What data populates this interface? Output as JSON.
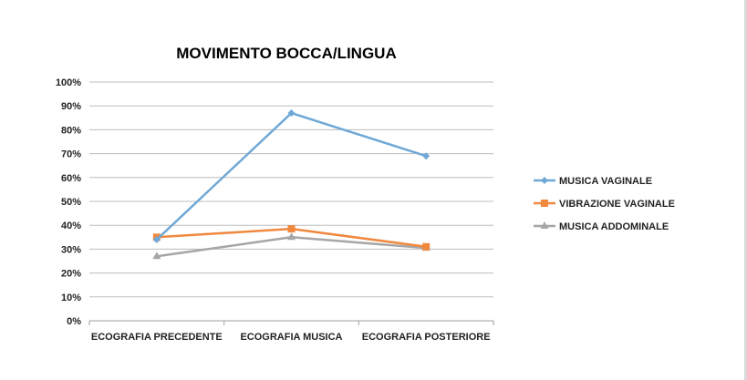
{
  "chart_data": {
    "type": "line",
    "title": "MOVIMENTO BOCCA/LINGUA",
    "categories": [
      "ECOGRAFIA PRECEDENTE",
      "ECOGRAFIA MUSICA",
      "ECOGRAFIA POSTERIORE"
    ],
    "y_ticks": [
      "0%",
      "10%",
      "20%",
      "30%",
      "40%",
      "50%",
      "60%",
      "70%",
      "80%",
      "90%",
      "100%"
    ],
    "ylim": [
      0,
      100
    ],
    "grid": true,
    "legend_position": "right",
    "series": [
      {
        "name": "MUSICA VAGINALE",
        "values": [
          34,
          87,
          69
        ],
        "color": "#6fa8d6",
        "marker": "diamond"
      },
      {
        "name": "VIBRAZIONE VAGINALE",
        "values": [
          35,
          38.5,
          31
        ],
        "color": "#f0883e",
        "marker": "square"
      },
      {
        "name": "MUSICA ADDOMINALE",
        "values": [
          27,
          35,
          30.5
        ],
        "color": "#a6a6a6",
        "marker": "triangle"
      }
    ]
  }
}
